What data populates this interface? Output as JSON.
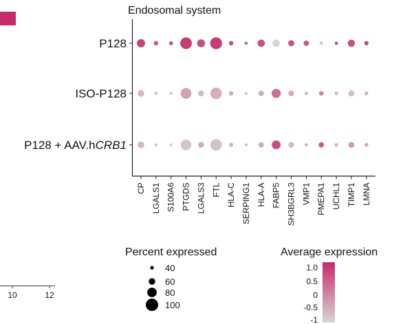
{
  "chart_data": {
    "type": "dotplot",
    "title": "Endosomal system",
    "rows": [
      "P128",
      "ISO-P128",
      "P128 + AAV.hCRB1"
    ],
    "row_label_parts": [
      {
        "plain": "P128",
        "italic": ""
      },
      {
        "plain": "ISO-P128",
        "italic": ""
      },
      {
        "plain": "P128 + AAV.h",
        "italic": "CRB1"
      }
    ],
    "genes": [
      "CP",
      "LGALS1",
      "S100A6",
      "PTGDS",
      "LGALS3",
      "FTL",
      "HLA-C",
      "SERPING1",
      "HLA-A",
      "FABP5",
      "SH3BGRL3",
      "VMP1",
      "PMEPA1",
      "UCHL1",
      "TIMP1",
      "LMNA"
    ],
    "percent_expressed": [
      [
        72,
        46,
        43,
        95,
        70,
        97,
        46,
        38,
        66,
        66,
        58,
        52,
        40,
        38,
        65,
        45
      ],
      [
        60,
        38,
        36,
        89,
        56,
        94,
        46,
        35,
        52,
        78,
        55,
        38,
        48,
        41,
        56,
        43
      ],
      [
        60,
        38,
        34,
        88,
        56,
        94,
        44,
        35,
        52,
        76,
        54,
        38,
        52,
        41,
        56,
        43
      ]
    ],
    "average_expression": [
      [
        0.7,
        0.55,
        0.6,
        0.8,
        0.6,
        0.8,
        0.6,
        0.3,
        0.55,
        -1,
        0.55,
        0.5,
        -0.9,
        0.7,
        0.6,
        0.6
      ],
      [
        -0.6,
        -0.7,
        -0.7,
        -0.4,
        -0.7,
        -0.55,
        -0.5,
        -0.7,
        -0.45,
        0.2,
        -0.5,
        -0.5,
        -0.05,
        -0.6,
        -0.7,
        -0.6
      ],
      [
        -0.6,
        -0.8,
        -0.8,
        -0.8,
        -0.5,
        -0.75,
        -0.6,
        -0.7,
        -0.5,
        0.6,
        -0.6,
        -0.5,
        0.5,
        -0.6,
        -0.3,
        -0.5
      ]
    ],
    "size_legend": {
      "title": "Percent expressed",
      "values": [
        40,
        60,
        80,
        100
      ]
    },
    "color_legend": {
      "title": "Average expression",
      "ticks": [
        "1.0",
        "0.5",
        "0",
        "-0.5",
        "-1"
      ],
      "low": "#d6d6d6",
      "high": "#c72a6a"
    },
    "cropped_axis_ticks": [
      "10",
      "12"
    ],
    "accent_color": "#c72a6a"
  }
}
